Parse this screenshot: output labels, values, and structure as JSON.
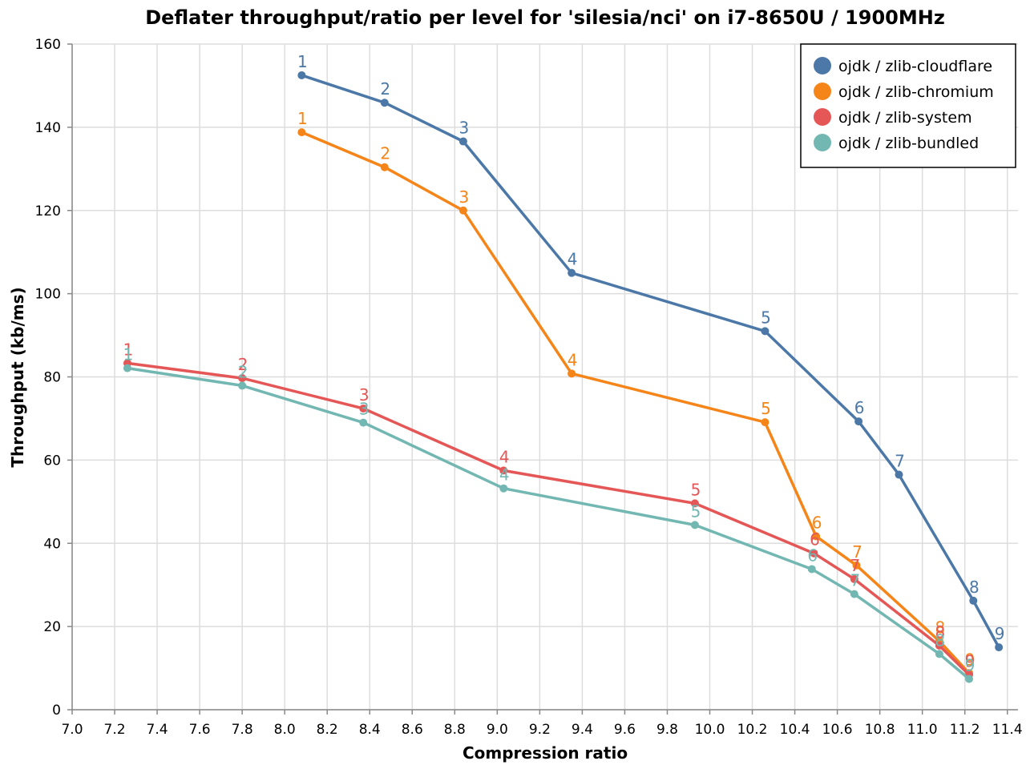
{
  "chart_data": {
    "type": "line",
    "title": "Deflater throughput/ratio per level for 'silesia/nci' on i7-8650U / 1900MHz",
    "xlabel": "Compression ratio",
    "ylabel": "Throughput (kb/ms)",
    "xlim": [
      7.0,
      11.45
    ],
    "ylim": [
      0,
      160
    ],
    "x_ticks": [
      "7.0",
      "7.2",
      "7.4",
      "7.6",
      "7.8",
      "8.0",
      "8.2",
      "8.4",
      "8.6",
      "8.8",
      "9.0",
      "9.2",
      "9.4",
      "9.6",
      "9.8",
      "10.0",
      "10.2",
      "10.4",
      "10.6",
      "10.8",
      "11.0",
      "11.2",
      "11.4"
    ],
    "y_ticks": [
      "0",
      "20",
      "40",
      "60",
      "80",
      "100",
      "120",
      "140",
      "160"
    ],
    "grid": true,
    "legend_position": "top-right",
    "series": [
      {
        "name": "ojdk / zlib-cloudflare",
        "color": "#4c78a8",
        "points": [
          {
            "x": 8.08,
            "y": 152.5,
            "label": "1"
          },
          {
            "x": 8.47,
            "y": 145.9,
            "label": "2"
          },
          {
            "x": 8.84,
            "y": 136.6,
            "label": "3"
          },
          {
            "x": 9.35,
            "y": 105.0,
            "label": "4"
          },
          {
            "x": 10.26,
            "y": 91.0,
            "label": "5"
          },
          {
            "x": 10.7,
            "y": 69.3,
            "label": "6"
          },
          {
            "x": 10.89,
            "y": 56.5,
            "label": "7"
          },
          {
            "x": 11.24,
            "y": 26.2,
            "label": "8"
          },
          {
            "x": 11.36,
            "y": 15.0,
            "label": "9"
          }
        ]
      },
      {
        "name": "ojdk / zlib-chromium",
        "color": "#f58518",
        "points": [
          {
            "x": 8.08,
            "y": 138.8,
            "label": "1"
          },
          {
            "x": 8.47,
            "y": 130.4,
            "label": "2"
          },
          {
            "x": 8.84,
            "y": 120.0,
            "label": "3"
          },
          {
            "x": 9.35,
            "y": 80.8,
            "label": "4"
          },
          {
            "x": 10.26,
            "y": 69.1,
            "label": "5"
          },
          {
            "x": 10.5,
            "y": 41.7,
            "label": "6"
          },
          {
            "x": 10.69,
            "y": 34.7,
            "label": "7"
          },
          {
            "x": 11.08,
            "y": 16.5,
            "label": "8"
          },
          {
            "x": 11.22,
            "y": 8.8,
            "label": "9"
          }
        ]
      },
      {
        "name": "ojdk / zlib-system",
        "color": "#e45756",
        "points": [
          {
            "x": 7.26,
            "y": 83.3,
            "label": "1"
          },
          {
            "x": 7.8,
            "y": 79.7,
            "label": "2"
          },
          {
            "x": 8.37,
            "y": 72.4,
            "label": "3"
          },
          {
            "x": 9.03,
            "y": 57.5,
            "label": "4"
          },
          {
            "x": 9.93,
            "y": 49.6,
            "label": "5"
          },
          {
            "x": 10.49,
            "y": 37.6,
            "label": "6"
          },
          {
            "x": 10.68,
            "y": 31.4,
            "label": "7"
          },
          {
            "x": 11.08,
            "y": 15.4,
            "label": "8"
          },
          {
            "x": 11.22,
            "y": 8.4,
            "label": "9"
          }
        ]
      },
      {
        "name": "ojdk / zlib-bundled",
        "color": "#72b7b2",
        "points": [
          {
            "x": 7.26,
            "y": 82.1,
            "label": "1"
          },
          {
            "x": 7.8,
            "y": 77.9,
            "label": "2"
          },
          {
            "x": 8.37,
            "y": 69.0,
            "label": "3"
          },
          {
            "x": 9.03,
            "y": 53.2,
            "label": "4"
          },
          {
            "x": 9.93,
            "y": 44.4,
            "label": "5"
          },
          {
            "x": 10.48,
            "y": 33.8,
            "label": "6"
          },
          {
            "x": 10.68,
            "y": 27.8,
            "label": "7"
          },
          {
            "x": 11.08,
            "y": 13.4,
            "label": "8"
          },
          {
            "x": 11.22,
            "y": 7.4,
            "label": "9"
          }
        ]
      }
    ]
  }
}
